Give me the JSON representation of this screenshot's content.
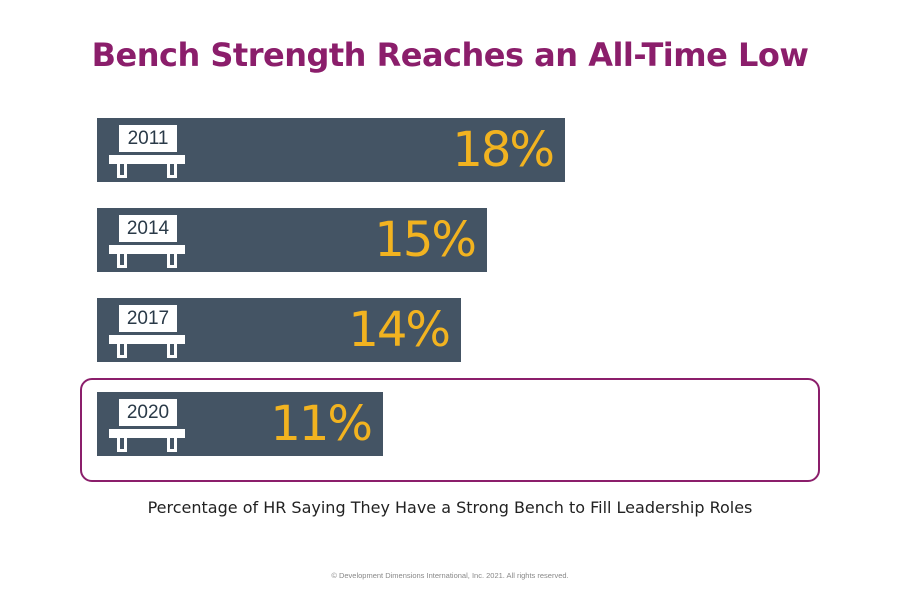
{
  "colors": {
    "title": "#8b1e6b",
    "bar": "#445464",
    "value": "#f2b320",
    "icon": "#ffffff",
    "highlight_border": "#8b1e6b"
  },
  "chart_data": {
    "type": "bar",
    "orientation": "horizontal",
    "title": "Bench Strength Reaches an All-Time Low",
    "caption": "Percentage of HR Saying They Have a Strong Bench to Fill Leadership Roles",
    "categories": [
      "2011",
      "2014",
      "2017",
      "2020"
    ],
    "values": [
      18,
      15,
      14,
      11
    ],
    "value_labels": [
      "18%",
      "15%",
      "14%",
      "11%"
    ],
    "unit": "%",
    "highlighted_category": "2020",
    "category_icon": "bench-icon",
    "grid": false,
    "axes_visible": false
  },
  "footer": {
    "copyright": "© Development Dimensions International, Inc. 2021. All rights reserved."
  }
}
